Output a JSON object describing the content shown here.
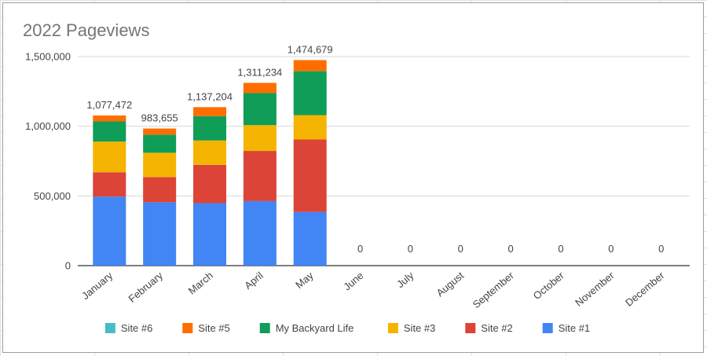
{
  "chart_data": {
    "type": "stacked-bar",
    "title": "2022 Pageviews",
    "xlabel": "",
    "ylabel": "",
    "ylim": [
      0,
      1500000
    ],
    "yticks": [
      "0",
      "500,000",
      "1,000,000",
      "1,500,000"
    ],
    "ytick_values": [
      0,
      500000,
      1000000,
      1500000
    ],
    "grid": true,
    "legend_position": "bottom",
    "categories": [
      "January",
      "February",
      "March",
      "April",
      "May",
      "June",
      "July",
      "August",
      "September",
      "October",
      "November",
      "December"
    ],
    "totals": [
      "1,077,472",
      "983,655",
      "1,137,204",
      "1,311,234",
      "1,474,679",
      "0",
      "0",
      "0",
      "0",
      "0",
      "0",
      "0"
    ],
    "series": [
      {
        "name": "Site #1",
        "color": "#4285f4",
        "values": [
          495000,
          455000,
          448000,
          463000,
          385000,
          0,
          0,
          0,
          0,
          0,
          0,
          0
        ]
      },
      {
        "name": "Site #2",
        "color": "#db4437",
        "values": [
          175000,
          180000,
          275000,
          360000,
          520000,
          0,
          0,
          0,
          0,
          0,
          0,
          0
        ]
      },
      {
        "name": "Site #3",
        "color": "#f4b400",
        "values": [
          220000,
          175000,
          175000,
          185000,
          175000,
          0,
          0,
          0,
          0,
          0,
          0,
          0
        ]
      },
      {
        "name": "My Backyard Life",
        "color": "#0f9d58",
        "values": [
          145000,
          130000,
          175000,
          230000,
          315000,
          0,
          0,
          0,
          0,
          0,
          0,
          0
        ]
      },
      {
        "name": "Site #5",
        "color": "#ff6d00",
        "values": [
          42472,
          43655,
          64204,
          73234,
          79679,
          0,
          0,
          0,
          0,
          0,
          0,
          0
        ]
      },
      {
        "name": "Site #6",
        "color": "#46bdc6",
        "values": [
          0,
          0,
          0,
          0,
          0,
          0,
          0,
          0,
          0,
          0,
          0,
          0
        ]
      }
    ],
    "legend_order": [
      "Site #6",
      "Site #5",
      "My Backyard Life",
      "Site #3",
      "Site #2",
      "Site #1"
    ]
  }
}
